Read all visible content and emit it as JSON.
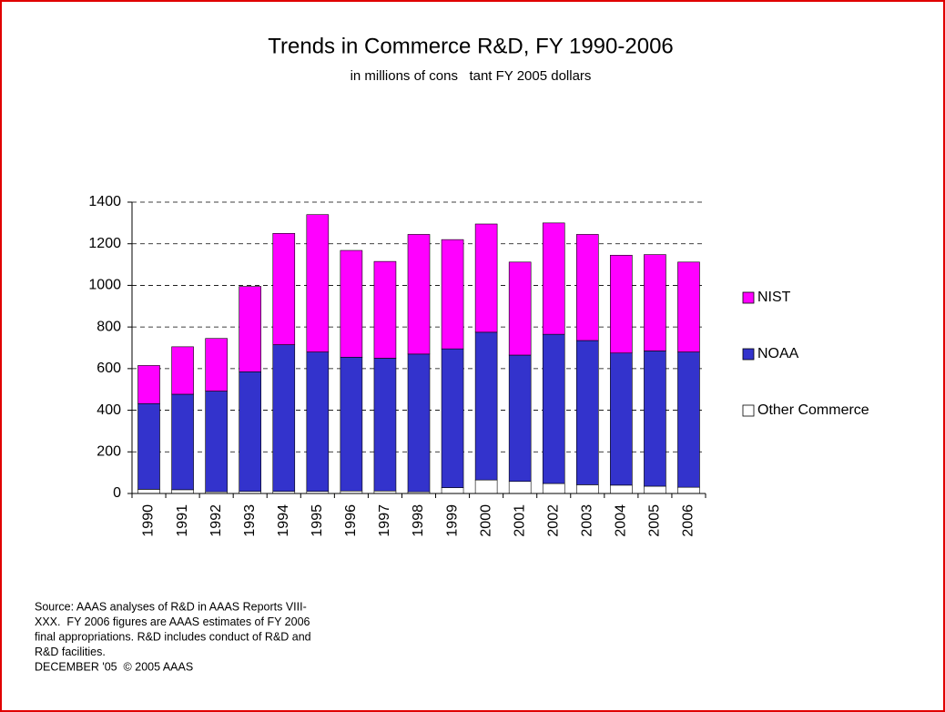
{
  "chart_data": {
    "type": "stacked_bar",
    "title": "Trends in Commerce R&D, FY 1990-2006",
    "subtitle": "in millions of cons   tant FY 2005 dollars",
    "categories": [
      "1990",
      "1991",
      "1992",
      "1993",
      "1994",
      "1995",
      "1996",
      "1997",
      "1998",
      "1999",
      "2000",
      "2001",
      "2002",
      "2003",
      "2004",
      "2005",
      "2006"
    ],
    "series": [
      {
        "name": "Other Commerce",
        "color": "#ffffff",
        "values": [
          20,
          18,
          8,
          10,
          10,
          10,
          12,
          12,
          8,
          28,
          65,
          58,
          48,
          42,
          40,
          35,
          30
        ]
      },
      {
        "name": "NOAA",
        "color": "#3333cc",
        "values": [
          412,
          459,
          484,
          575,
          705,
          670,
          643,
          638,
          662,
          667,
          710,
          607,
          717,
          693,
          635,
          650,
          650
        ]
      },
      {
        "name": "NIST",
        "color": "#ff00ff",
        "values": [
          183,
          228,
          253,
          410,
          535,
          660,
          513,
          465,
          575,
          525,
          520,
          447,
          535,
          510,
          470,
          463,
          432
        ]
      }
    ],
    "ylim": [
      0,
      1400
    ],
    "yticks": [
      0,
      200,
      400,
      600,
      800,
      1000,
      1200,
      1400
    ],
    "grid": true,
    "legend": "right",
    "footnote": [
      "Source: AAAS analyses of R&D in AAAS Reports VIII-",
      "XXX.  FY 2006 figures are AAAS estimates of FY 2006",
      "final appropriations. R&D includes conduct of R&D and",
      "R&D facilities.",
      "DECEMBER '05  © 2005 AAAS"
    ]
  }
}
